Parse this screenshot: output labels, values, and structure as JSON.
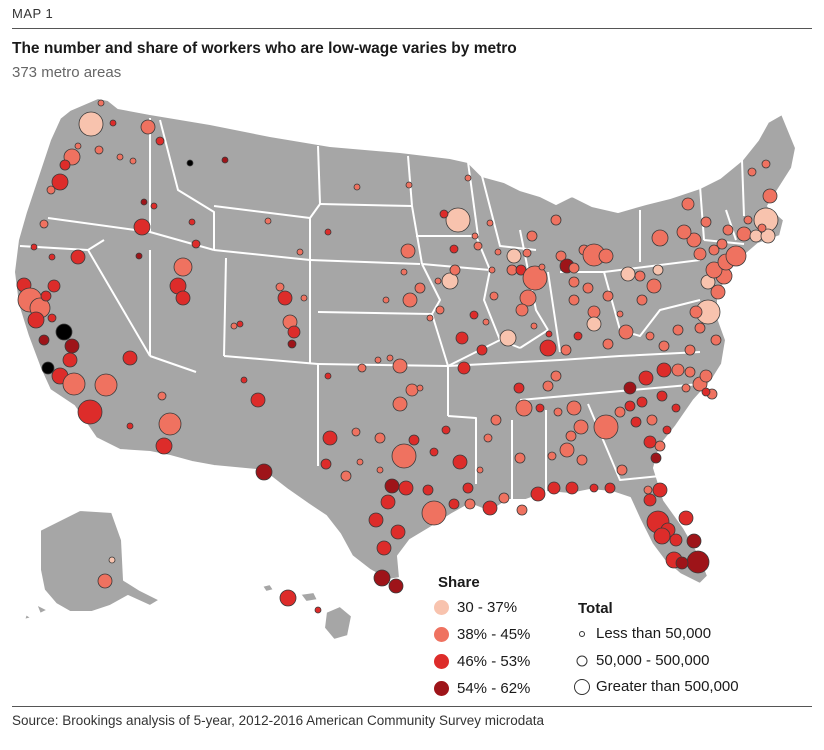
{
  "header": {
    "map_label": "MAP 1",
    "title": "The number and share of workers who are low-wage varies by metro",
    "subtitle": "373 metro areas"
  },
  "legend": {
    "share_title": "Share",
    "share_items": [
      {
        "label": "30 - 37%",
        "color": "#f8c3ae"
      },
      {
        "label": "38% - 45%",
        "color": "#ef7260"
      },
      {
        "label": "46% - 53%",
        "color": "#dd2c2a"
      },
      {
        "label": "54% - 62%",
        "color": "#9e1419"
      }
    ],
    "total_title": "Total",
    "total_items": [
      {
        "label": "Less than 50,000"
      },
      {
        "label": "50,000 - 500,000"
      },
      {
        "label": "Greater than 500,000"
      }
    ]
  },
  "colors": {
    "land": "#a6a6a6",
    "border": "#ffffff",
    "share_1": "#f8c3ae",
    "share_2": "#ef7260",
    "share_3": "#dd2c2a",
    "share_4": "#9e1419"
  },
  "footer": {
    "source": "Source: Brookings analysis of 5-year, 2012-2016 American Community Survey microdata"
  }
}
